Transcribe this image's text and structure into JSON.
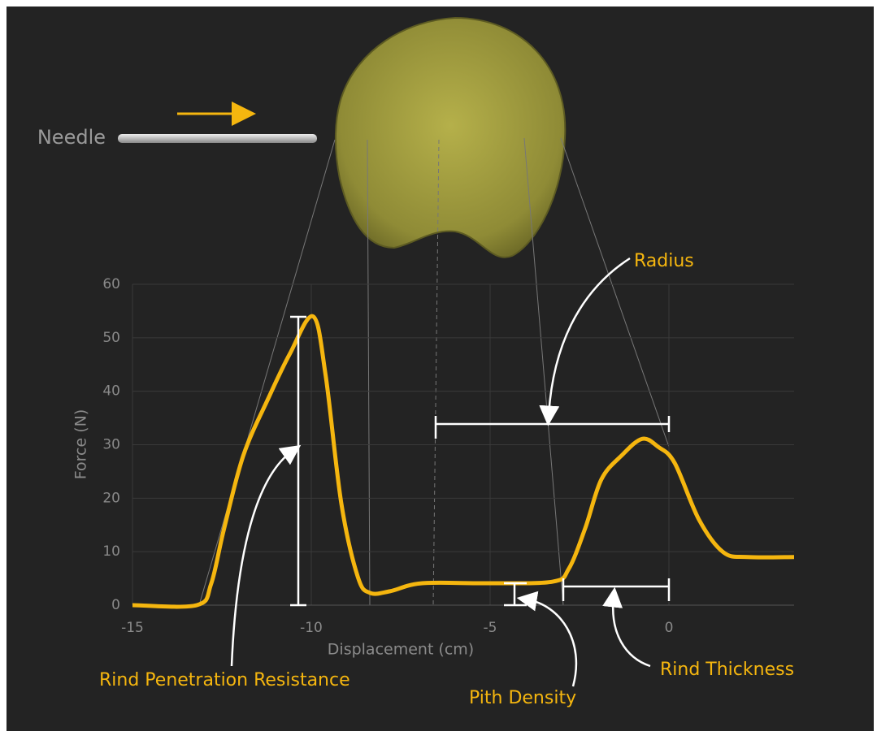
{
  "chart_data": {
    "type": "line",
    "x_label": "Displacement (cm)",
    "y_label": "Force (N)",
    "x": [
      -15,
      -13.2,
      -12.8,
      -12.45,
      -11.9,
      -11.2,
      -10.6,
      -9.95,
      -9.6,
      -9.16,
      -8.7,
      -8.36,
      -7.8,
      -6.9,
      -5.07,
      -3.25,
      -2.8,
      -2.34,
      -1.89,
      -1.32,
      -0.75,
      -0.3,
      0.16,
      0.84,
      1.52,
      2.2,
      3.5
    ],
    "series": [
      {
        "color": "#f5b60f",
        "values": [
          0,
          0,
          4,
          14,
          28,
          38.7,
          47,
          54,
          43,
          19,
          5.3,
          2.3,
          2.6,
          4.1,
          4.1,
          4.4,
          6.8,
          14.4,
          23.5,
          28,
          31.1,
          29.6,
          26.6,
          16,
          9.9,
          9,
          9
        ]
      }
    ],
    "xlim": [
      -15,
      3.5
    ],
    "ylim": [
      0,
      60
    ],
    "xticks": [
      -15,
      -10,
      -5,
      0
    ],
    "yticks": [
      0,
      10,
      20,
      30,
      40,
      50,
      60
    ],
    "grid": true,
    "annotations": [
      "Needle",
      "Radius",
      "Rind Penetration Resistance",
      "Pith Density",
      "Rind Thickness"
    ]
  }
}
